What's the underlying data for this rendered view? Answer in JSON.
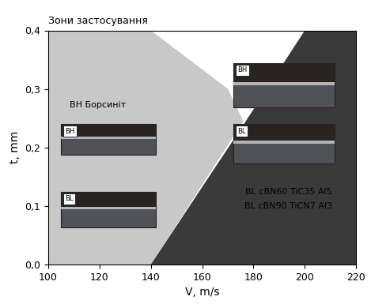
{
  "chart_data": {
    "type": "area",
    "title": "Зони застосування",
    "x_label": "V, m/s",
    "y_label": "t, mm",
    "xlim": [
      100,
      220
    ],
    "ylim": [
      0.0,
      0.4
    ],
    "xticks": [
      100,
      120,
      140,
      160,
      180,
      200,
      220
    ],
    "yticks": [
      {
        "value": 0.0,
        "label": "0,0"
      },
      {
        "value": 0.1,
        "label": "0,1"
      },
      {
        "value": 0.2,
        "label": "0,2"
      },
      {
        "value": 0.3,
        "label": "0,3"
      },
      {
        "value": 0.4,
        "label": "0,4"
      }
    ],
    "grid": false,
    "series": [
      {
        "color": "#c8c8c8",
        "x": [
          100,
          100,
          140,
          170,
          176,
          140
        ],
        "y": [
          0.0,
          0.4,
          0.4,
          0.3,
          0.245,
          0.0
        ],
        "labels": [
          "ВН Борсиніт"
        ],
        "photo_labels": [
          "BH",
          "BL"
        ]
      },
      {
        "color": "#3a3a3a",
        "x": [
          140,
          177,
          200,
          220,
          220
        ],
        "y": [
          0.0,
          0.245,
          0.4,
          0.4,
          0.0
        ],
        "labels": [
          "BL cBN60 TiC35 Al5",
          "BL cBN90 TiCN7 Al3"
        ],
        "photo_labels": [
          "BH",
          "BL"
        ]
      }
    ]
  }
}
